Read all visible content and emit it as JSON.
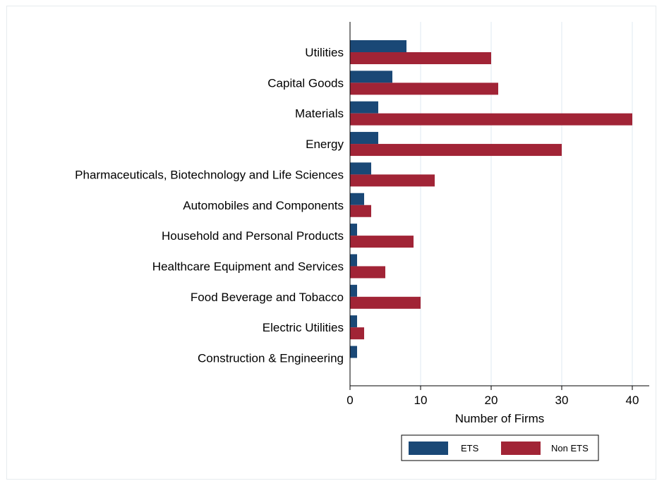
{
  "chart_data": {
    "type": "bar",
    "orientation": "horizontal",
    "title": "",
    "xlabel": "Number of Firms",
    "ylabel": "",
    "xlim": [
      0,
      42
    ],
    "xticks": [
      0,
      10,
      20,
      30,
      40
    ],
    "grid": true,
    "legend_position": "bottom",
    "categories": [
      "Utilities",
      "Capital Goods",
      "Materials",
      "Energy",
      "Pharmaceuticals, Biotechnology and Life Sciences",
      "Automobiles and Components",
      "Household and Personal Products",
      "Healthcare Equipment and Services",
      "Food Beverage and Tobacco",
      "Electric Utilities",
      "Construction & Engineering"
    ],
    "series": [
      {
        "name": "ETS",
        "color": "#1a4876",
        "values": [
          8,
          6,
          4,
          4,
          3,
          2,
          1,
          1,
          1,
          1,
          1
        ]
      },
      {
        "name": "Non ETS",
        "color": "#a12436",
        "values": [
          20,
          21,
          40,
          30,
          12,
          3,
          9,
          5,
          10,
          2,
          0
        ]
      }
    ]
  }
}
